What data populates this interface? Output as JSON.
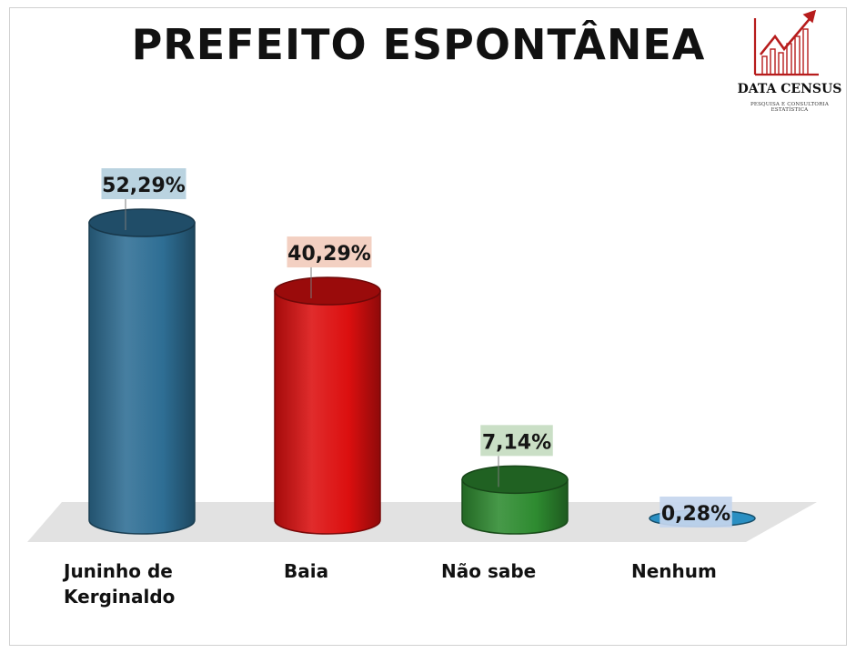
{
  "title": "PREFEITO ESPONTÂNEA",
  "logo": {
    "name": "DATA CENSUS",
    "tagline": "PESQUISA E CONSULTORIA ESTATÍSTICA",
    "icon": "bar-growth-arrow-icon",
    "color": "#b71c1c"
  },
  "chart_data": {
    "type": "bar",
    "title": "PREFEITO ESPONTÂNEA",
    "xlabel": "",
    "ylabel": "",
    "ylim": [
      0,
      60
    ],
    "grid": false,
    "categories": [
      "Juninho de Kerginaldo",
      "Baia",
      "Não sabe",
      "Nenhum"
    ],
    "category_lines": [
      [
        "Juninho de",
        "Kerginaldo"
      ],
      [
        "Baia"
      ],
      [
        "Não sabe"
      ],
      [
        "Nenhum"
      ]
    ],
    "values": [
      52.29,
      40.29,
      7.14,
      0.28
    ],
    "data_labels": [
      "52,29%",
      "40,29%",
      "7,14%",
      "0,28%"
    ],
    "colors": [
      "#2e6e94",
      "#dc0f0f",
      "#2e8b30",
      "#2a8fc2"
    ],
    "label_backgrounds": [
      "#b4cfdd",
      "#f2ccbd",
      "#c5dcc1",
      "#c6d6ee"
    ]
  }
}
